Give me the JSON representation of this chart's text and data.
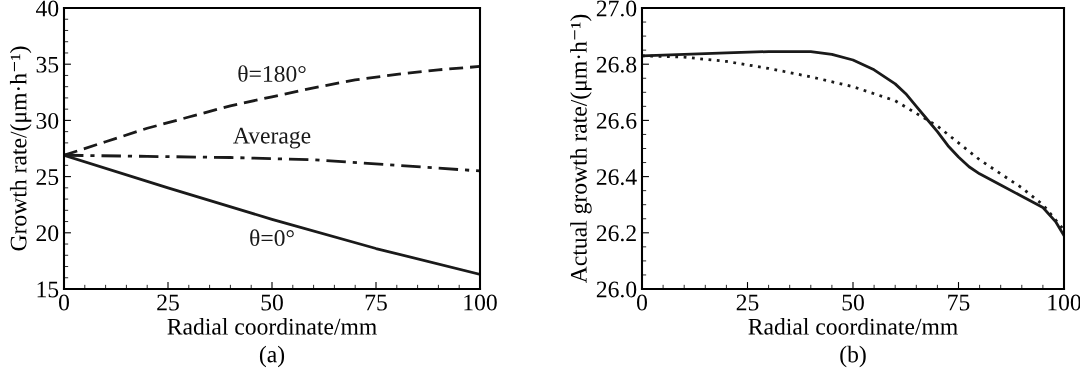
{
  "chart_data": [
    {
      "type": "line",
      "title": "(a)",
      "xlabel": "Radial coordinate/mm",
      "ylabel": "Growth rate/(μm·h⁻¹)",
      "xlim": [
        0,
        100
      ],
      "xticks": [
        0,
        25,
        50,
        75,
        100
      ],
      "ylim": [
        15,
        40
      ],
      "yticks": [
        15,
        20,
        25,
        30,
        35,
        40
      ],
      "grid": false,
      "legend": false,
      "series": [
        {
          "name": "θ=180°",
          "color": "#1a1a1a",
          "line_style": "dashed",
          "x": [
            0,
            10,
            20,
            30,
            40,
            50,
            60,
            70,
            80,
            90,
            100
          ],
          "values": [
            26.9,
            28.1,
            29.3,
            30.3,
            31.3,
            32.1,
            32.9,
            33.6,
            34.1,
            34.5,
            34.8
          ]
        },
        {
          "name": "Average",
          "color": "#1a1a1a",
          "line_style": "dashdot",
          "x": [
            0,
            20,
            40,
            60,
            80,
            100
          ],
          "values": [
            26.9,
            26.8,
            26.7,
            26.5,
            26.0,
            25.5
          ]
        },
        {
          "name": "θ=0°",
          "color": "#1a1a1a",
          "line_style": "solid",
          "x": [
            0,
            25,
            50,
            75,
            100
          ],
          "values": [
            26.9,
            24.0,
            21.2,
            18.6,
            16.3
          ]
        }
      ]
    },
    {
      "type": "line",
      "title": "(b)",
      "xlabel": "Radial coordinate/mm",
      "ylabel": "Actual growth rate/(μm·h⁻¹)",
      "xlim": [
        0,
        100
      ],
      "xticks": [
        0,
        25,
        50,
        75,
        100
      ],
      "ylim": [
        26.0,
        27.0
      ],
      "yticks": [
        {
          "value": 26.0,
          "label": "26.0"
        },
        26.2,
        26.4,
        26.6,
        26.8,
        {
          "value": 27.0,
          "label": "27.0"
        }
      ],
      "grid": false,
      "legend": false,
      "series": [
        {
          "color": "#1a1a1a",
          "line_style": "solid",
          "x": [
            0,
            10,
            20,
            30,
            40,
            45,
            50,
            55,
            60,
            62.5,
            65,
            67.5,
            70,
            72.5,
            75,
            77.5,
            80,
            85,
            90,
            95,
            98,
            100
          ],
          "values": [
            26.83,
            26.835,
            26.84,
            26.845,
            26.845,
            26.835,
            26.815,
            26.78,
            26.73,
            26.695,
            26.65,
            26.605,
            26.56,
            26.51,
            26.47,
            26.435,
            26.41,
            26.37,
            26.33,
            26.29,
            26.24,
            26.19
          ]
        },
        {
          "color": "#1a1a1a",
          "line_style": "dotted",
          "x": [
            0,
            10,
            20,
            30,
            40,
            50,
            60,
            70,
            80,
            90,
            95,
            100
          ],
          "values": [
            26.83,
            26.825,
            26.81,
            26.785,
            26.755,
            26.72,
            26.67,
            26.58,
            26.46,
            26.36,
            26.3,
            26.21
          ]
        }
      ]
    }
  ]
}
